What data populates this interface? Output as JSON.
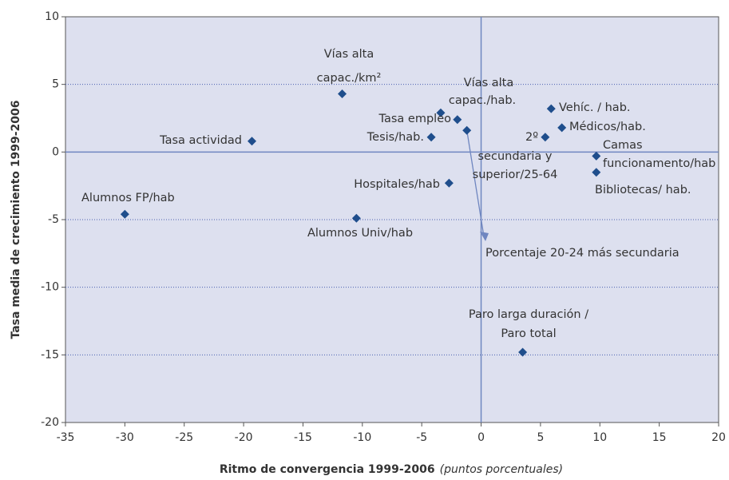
{
  "chart_data": {
    "type": "scatter",
    "x_label": "Ritmo de convergencia 1999-2006",
    "x_label_note": "(puntos porcentuales)",
    "y_label": "Tasa media de crecimiento 1999-2006",
    "color": "#1f4e8c",
    "x": [
      -11.7,
      -3.4,
      -2.0,
      -1.2,
      -4.2,
      -19.3,
      -2.7,
      -30.0,
      -10.5,
      5.9,
      6.8,
      5.4,
      9.7,
      9.7,
      3.5
    ],
    "values": [
      4.3,
      2.9,
      2.4,
      1.6,
      1.1,
      0.8,
      -2.3,
      -4.6,
      -4.9,
      3.2,
      1.8,
      1.1,
      -0.3,
      -1.5,
      -14.8
    ],
    "point_labels": [
      [
        "Vías alta",
        "capac./km²"
      ],
      [
        "Vías alta",
        "capac./hab."
      ],
      [
        "Tasa empleo"
      ],
      [
        "Porcentaje 20-24 más secundaria"
      ],
      [
        "Tesis/hab."
      ],
      [
        "Tasa actividad"
      ],
      [
        "Hospitales/hab"
      ],
      [
        "Alumnos FP/hab"
      ],
      [
        "Alumnos Univ/hab"
      ],
      [
        "Vehíc. / hab."
      ],
      [
        "Médicos/hab."
      ],
      [
        "2º",
        "secundaria y",
        "superior/25-64"
      ],
      [
        "Camas",
        "funcionamento/hab"
      ],
      [
        "Bibliotecas/ hab."
      ],
      [
        "Paro larga duración /",
        "Paro total"
      ]
    ],
    "xlim": [
      -35,
      20
    ],
    "ylim": [
      -20,
      10
    ],
    "xticks": [
      -35,
      -30,
      -25,
      -20,
      -15,
      -10,
      -5,
      0,
      5,
      10,
      15,
      20
    ],
    "yticks": [
      -20,
      -15,
      -10,
      -5,
      0,
      5,
      10
    ],
    "grid": true
  }
}
